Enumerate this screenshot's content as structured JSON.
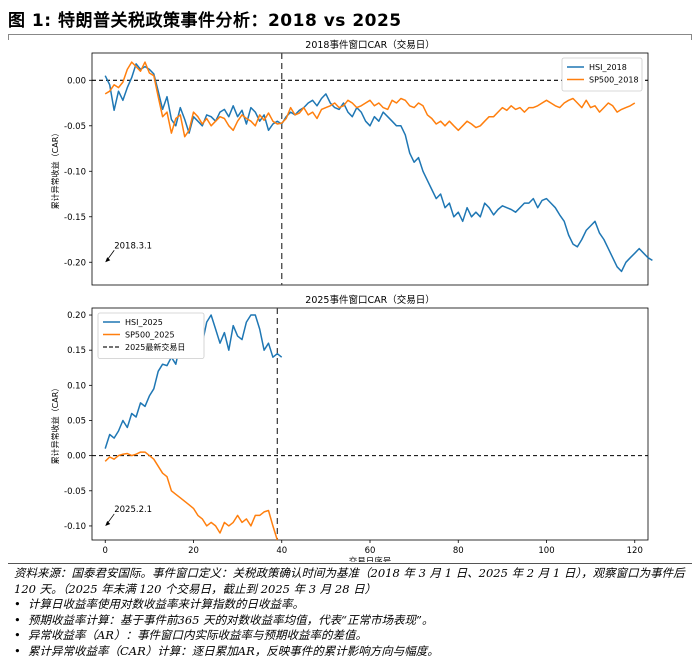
{
  "figure": {
    "title": "图 1:  特朗普关税政策事件分析：2018 vs 2025"
  },
  "chart_data": [
    {
      "type": "line",
      "title": "2018事件窗口CAR（交易日）",
      "ylabel": "累计异常收益（CAR）",
      "xlabel": "",
      "xlim": [
        -3,
        123
      ],
      "ylim": [
        -0.225,
        0.03
      ],
      "yticks": [
        "0.00",
        "-0.05",
        "-0.10",
        "-0.15",
        "-0.20"
      ],
      "ytick_values": [
        0.0,
        -0.05,
        -0.1,
        -0.15,
        -0.2
      ],
      "legend_position": "top-right",
      "hline": 0,
      "vline": 40,
      "annotation": {
        "text": "2018.3.1",
        "x": 0,
        "y": -0.2
      },
      "series": [
        {
          "name": "HSI_2018",
          "color": "#1f77b4",
          "values": [
            0.005,
            -0.005,
            -0.033,
            -0.012,
            -0.022,
            -0.008,
            0.003,
            0.018,
            0.012,
            0.015,
            0.012,
            0.007,
            -0.012,
            -0.032,
            -0.018,
            -0.043,
            -0.05,
            -0.03,
            -0.043,
            -0.058,
            -0.04,
            -0.045,
            -0.05,
            -0.038,
            -0.04,
            -0.045,
            -0.035,
            -0.032,
            -0.04,
            -0.028,
            -0.04,
            -0.033,
            -0.048,
            -0.03,
            -0.035,
            -0.045,
            -0.038,
            -0.055,
            -0.048,
            -0.045,
            -0.048,
            -0.04,
            -0.035,
            -0.038,
            -0.033,
            -0.03,
            -0.025,
            -0.022,
            -0.028,
            -0.02,
            -0.015,
            -0.025,
            -0.03,
            -0.032,
            -0.025,
            -0.035,
            -0.04,
            -0.03,
            -0.035,
            -0.045,
            -0.05,
            -0.04,
            -0.045,
            -0.035,
            -0.04,
            -0.045,
            -0.05,
            -0.05,
            -0.06,
            -0.08,
            -0.09,
            -0.085,
            -0.1,
            -0.11,
            -0.12,
            -0.13,
            -0.125,
            -0.14,
            -0.135,
            -0.15,
            -0.145,
            -0.155,
            -0.14,
            -0.15,
            -0.145,
            -0.15,
            -0.135,
            -0.14,
            -0.148,
            -0.142,
            -0.138,
            -0.14,
            -0.142,
            -0.145,
            -0.14,
            -0.135,
            -0.135,
            -0.13,
            -0.14,
            -0.132,
            -0.13,
            -0.135,
            -0.14,
            -0.148,
            -0.155,
            -0.17,
            -0.18,
            -0.183,
            -0.175,
            -0.165,
            -0.16,
            -0.155,
            -0.168,
            -0.175,
            -0.185,
            -0.195,
            -0.205,
            -0.21,
            -0.2,
            -0.195,
            -0.19,
            -0.185,
            -0.19,
            -0.195,
            -0.198
          ]
        },
        {
          "name": "SP500_2018",
          "color": "#ff7f0e",
          "values": [
            -0.015,
            -0.012,
            -0.005,
            -0.008,
            -0.002,
            0.012,
            0.02,
            0.015,
            0.01,
            0.02,
            0.008,
            0.005,
            -0.018,
            -0.04,
            -0.035,
            -0.058,
            -0.042,
            -0.038,
            -0.062,
            -0.055,
            -0.035,
            -0.04,
            -0.048,
            -0.042,
            -0.05,
            -0.045,
            -0.04,
            -0.042,
            -0.05,
            -0.055,
            -0.045,
            -0.038,
            -0.042,
            -0.045,
            -0.05,
            -0.038,
            -0.044,
            -0.036,
            -0.045,
            -0.048,
            -0.047,
            -0.042,
            -0.03,
            -0.038,
            -0.036,
            -0.03,
            -0.038,
            -0.035,
            -0.042,
            -0.032,
            -0.03,
            -0.028,
            -0.025,
            -0.03,
            -0.028,
            -0.022,
            -0.025,
            -0.03,
            -0.028,
            -0.025,
            -0.022,
            -0.028,
            -0.025,
            -0.03,
            -0.032,
            -0.022,
            -0.025,
            -0.02,
            -0.022,
            -0.028,
            -0.03,
            -0.025,
            -0.028,
            -0.038,
            -0.042,
            -0.048,
            -0.045,
            -0.05,
            -0.045,
            -0.05,
            -0.055,
            -0.05,
            -0.045,
            -0.048,
            -0.052,
            -0.05,
            -0.045,
            -0.04,
            -0.04,
            -0.035,
            -0.03,
            -0.033,
            -0.028,
            -0.032,
            -0.03,
            -0.035,
            -0.03,
            -0.03,
            -0.028,
            -0.025,
            -0.022,
            -0.025,
            -0.028,
            -0.03,
            -0.025,
            -0.022,
            -0.02,
            -0.025,
            -0.03,
            -0.022,
            -0.03,
            -0.028,
            -0.035,
            -0.03,
            -0.025,
            -0.028,
            -0.035,
            -0.032,
            -0.03,
            -0.028,
            -0.025
          ]
        }
      ]
    },
    {
      "type": "line",
      "title": "2025事件窗口CAR（交易日）",
      "ylabel": "累计异常收益（CAR）",
      "xlabel": "交易日序号",
      "xlim": [
        -3,
        123
      ],
      "ylim": [
        -0.12,
        0.21
      ],
      "xticks": [
        "0",
        "20",
        "40",
        "60",
        "80",
        "100",
        "120"
      ],
      "xtick_values": [
        0,
        20,
        40,
        60,
        80,
        100,
        120
      ],
      "yticks": [
        "0.20",
        "0.15",
        "0.10",
        "0.05",
        "0.00",
        "-0.05",
        "-0.10"
      ],
      "ytick_values": [
        0.2,
        0.15,
        0.1,
        0.05,
        0.0,
        -0.05,
        -0.1
      ],
      "legend_position": "top-left",
      "hline": 0,
      "vline": 39,
      "annotation": {
        "text": "2025.2.1",
        "x": 0,
        "y": -0.1
      },
      "series": [
        {
          "name": "HSI_2025",
          "color": "#1f77b4",
          "values": [
            0.01,
            0.03,
            0.025,
            0.035,
            0.05,
            0.04,
            0.06,
            0.055,
            0.075,
            0.07,
            0.085,
            0.095,
            0.12,
            0.13,
            0.128,
            0.14,
            0.13,
            0.16,
            0.15,
            0.14,
            0.175,
            0.18,
            0.16,
            0.19,
            0.2,
            0.18,
            0.16,
            0.175,
            0.15,
            0.185,
            0.17,
            0.165,
            0.19,
            0.2,
            0.2,
            0.18,
            0.15,
            0.16,
            0.14,
            0.145,
            0.14
          ]
        },
        {
          "name": "SP500_2025",
          "color": "#ff7f0e",
          "values": [
            -0.008,
            -0.002,
            -0.005,
            0.0,
            0.002,
            0.003,
            0.0,
            0.002,
            0.005,
            0.005,
            0.0,
            -0.005,
            -0.015,
            -0.025,
            -0.03,
            -0.05,
            -0.055,
            -0.06,
            -0.065,
            -0.07,
            -0.075,
            -0.085,
            -0.09,
            -0.1,
            -0.095,
            -0.1,
            -0.11,
            -0.095,
            -0.1,
            -0.095,
            -0.085,
            -0.095,
            -0.09,
            -0.1,
            -0.085,
            -0.085,
            -0.08,
            -0.078,
            -0.1,
            -0.12
          ]
        },
        {
          "name": "2025最新交易日",
          "color": "#444444",
          "dashed": true,
          "values": []
        }
      ]
    }
  ],
  "notes": {
    "source_line": "资料来源：国泰君安国际。事件窗口定义：关税政策确认时间为基准（2018 年 3 月 1 日、2025 年 2 月 1 日），观察窗口为事件后 120 天。（2025 年未满 120 个交易日，截止到 2025 年 3 月 28 日）",
    "bullets": [
      "计算日收益率使用对数收益率来计算指数的日收益率。",
      "预期收益率计算：基于事件前365 天的对数收益率均值，代表“正常市场表现”。",
      "异常收益率（AR）：事件窗口内实际收益率与预期收益率的差值。",
      "累计异常收益率（CAR）计算：逐日累加AR，反映事件的累计影响方向与幅度。"
    ]
  }
}
